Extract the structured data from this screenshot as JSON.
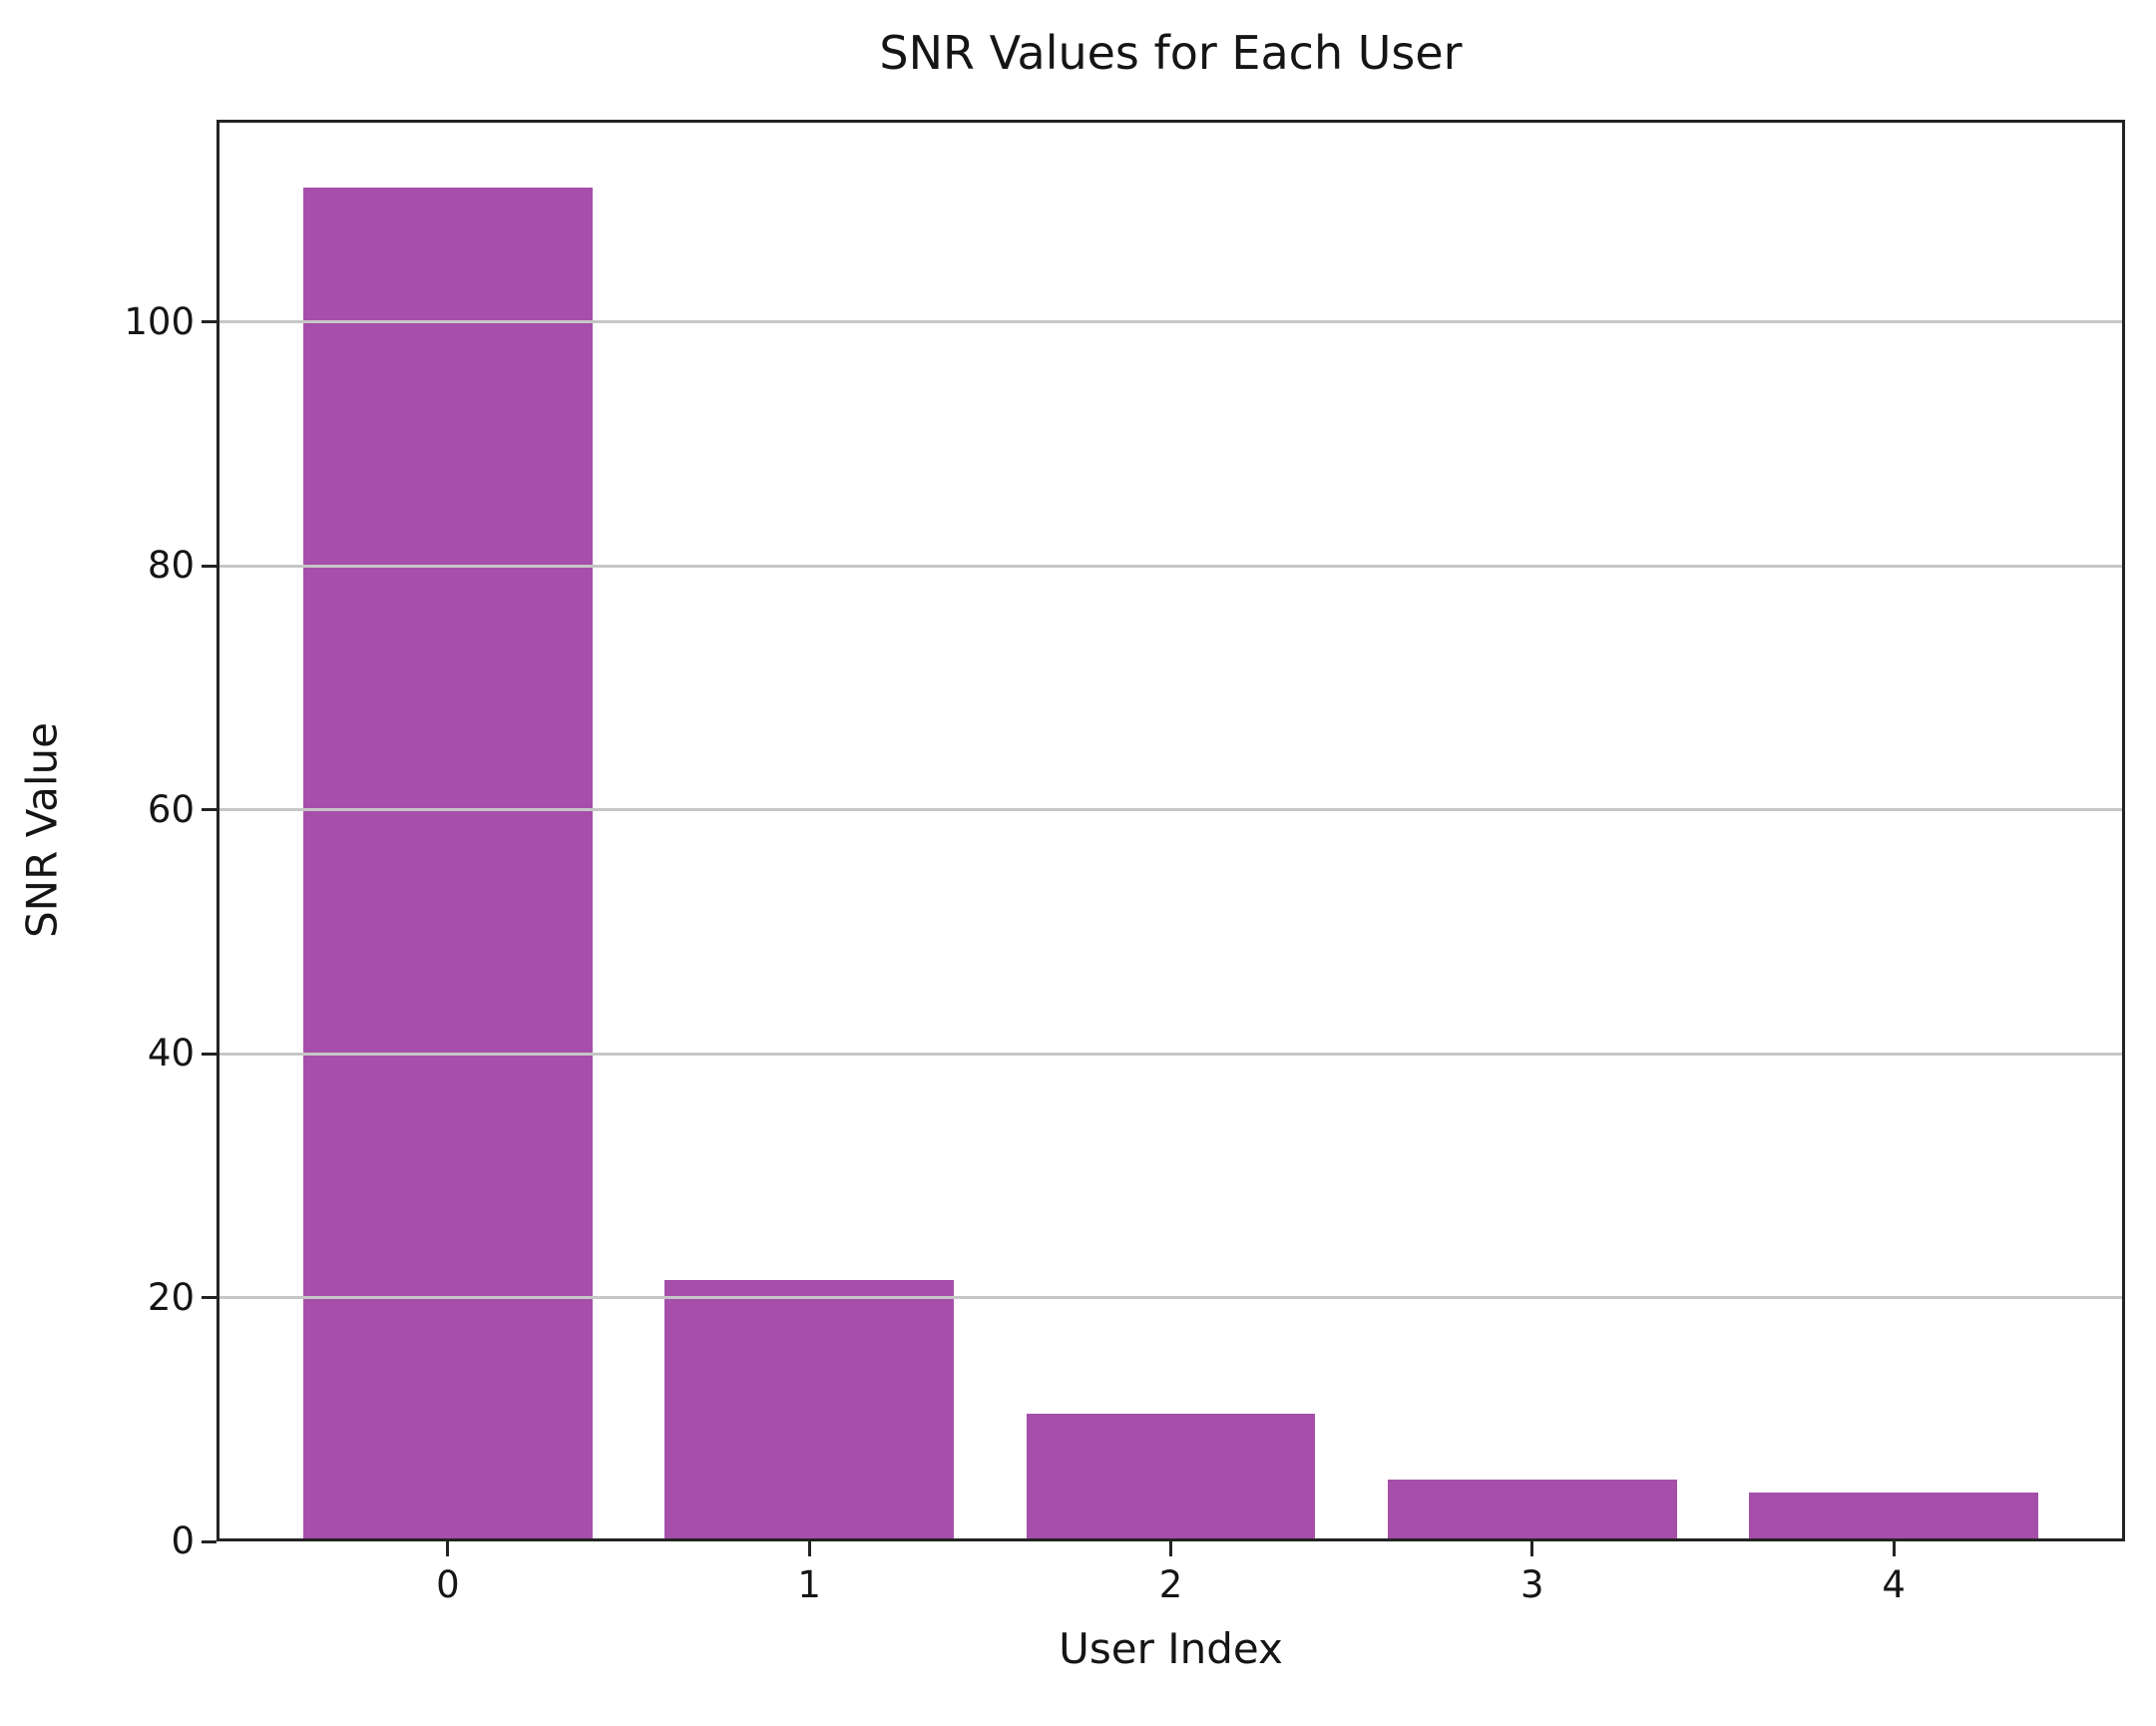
{
  "chart_data": {
    "type": "bar",
    "title": "SNR Values for Each User",
    "xlabel": "User Index",
    "ylabel": "SNR Value",
    "categories": [
      "0",
      "1",
      "2",
      "3",
      "4"
    ],
    "values": [
      111.0,
      21.4,
      10.5,
      5.1,
      4.0
    ],
    "yticks": [
      0,
      20,
      40,
      60,
      80,
      100
    ],
    "ylim": [
      0,
      116.6
    ],
    "xlim": [
      -0.64,
      4.64
    ],
    "bar_width": 0.8,
    "grid": true,
    "legend": "none",
    "bar_color": "#a54fab",
    "grid_color": "#c6c6c6",
    "spine_color": "#232323",
    "text_color": "#151515",
    "background_color": "#ffffff"
  }
}
